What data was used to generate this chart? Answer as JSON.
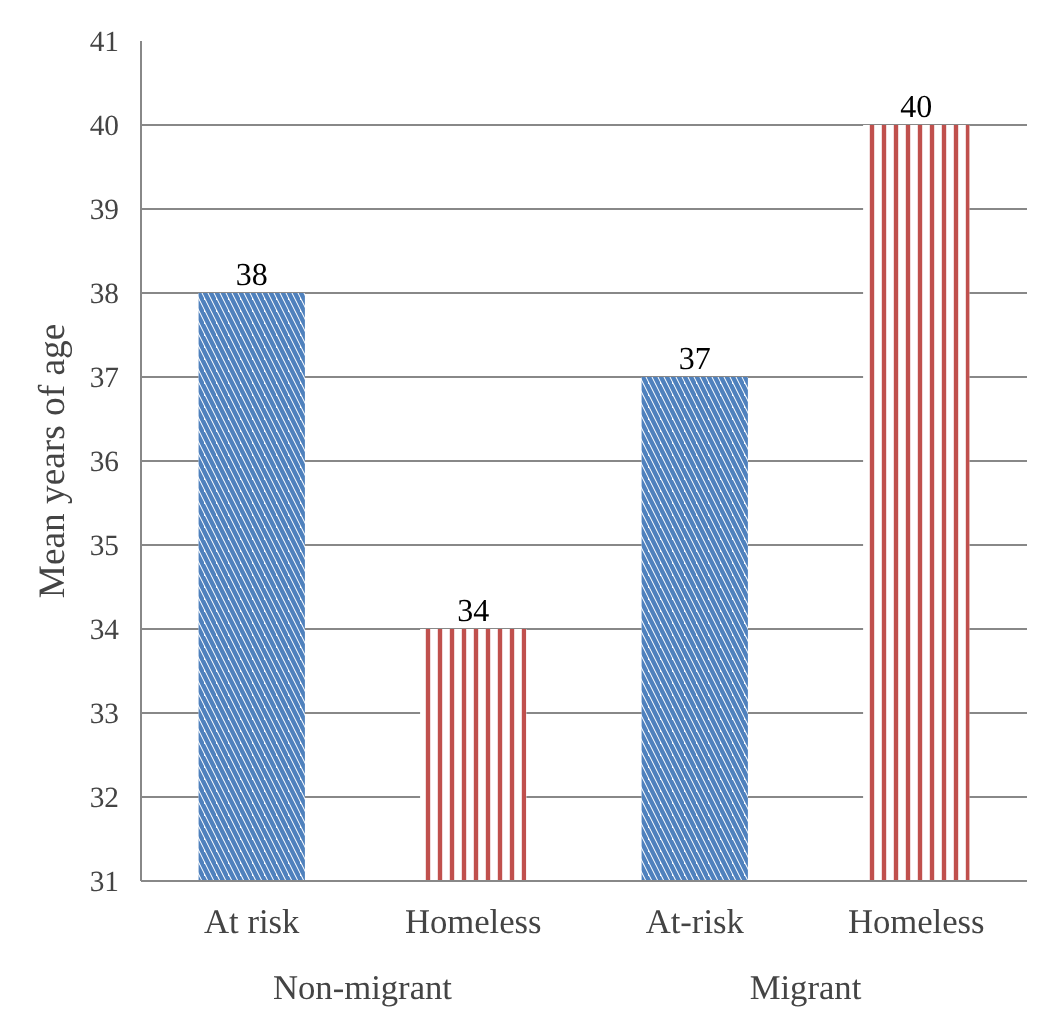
{
  "chart_data": {
    "type": "bar",
    "ylabel": "Mean years of age",
    "categories": [
      "At risk",
      "Homeless",
      "At-risk",
      "Homeless"
    ],
    "values": [
      38,
      34,
      37,
      40
    ],
    "colors": [
      "#4f81bd",
      "#c0504d",
      "#4f81bd",
      "#c0504d"
    ],
    "ylim": [
      31,
      41
    ],
    "yticks": [
      31,
      32,
      33,
      34,
      35,
      36,
      37,
      38,
      39,
      40,
      41
    ],
    "grid": "y",
    "data_labels": true,
    "annotations": [
      "Non-migrant",
      "Migrant"
    ]
  }
}
